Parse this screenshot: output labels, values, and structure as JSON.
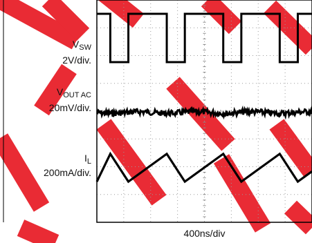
{
  "chart_data": {
    "type": "line",
    "title": "",
    "xlabel": "400ns/div",
    "xlim": [
      0,
      3.2
    ],
    "x_units": "µs",
    "grid": true,
    "watermark_color": "#e8202a",
    "channels": [
      {
        "name_main": "V",
        "name_sub": "SW",
        "scale": "2V/div.",
        "wave": "square",
        "period": 0.84,
        "duty_high": 0.68,
        "phase_first_fall": 0.2,
        "high_div": 1.0,
        "low_div": 0.0
      },
      {
        "name_main": "V",
        "name_sub": "OUT AC",
        "scale": "20mV/div.",
        "wave": "noise",
        "amplitude_div": 0.1
      },
      {
        "name_main": "I",
        "name_sub": "L",
        "scale": "200mA/div.",
        "wave": "triangle",
        "period": 0.84,
        "peak_to_peak_div": 1.0,
        "phase_first_peak": 0.2
      }
    ]
  }
}
